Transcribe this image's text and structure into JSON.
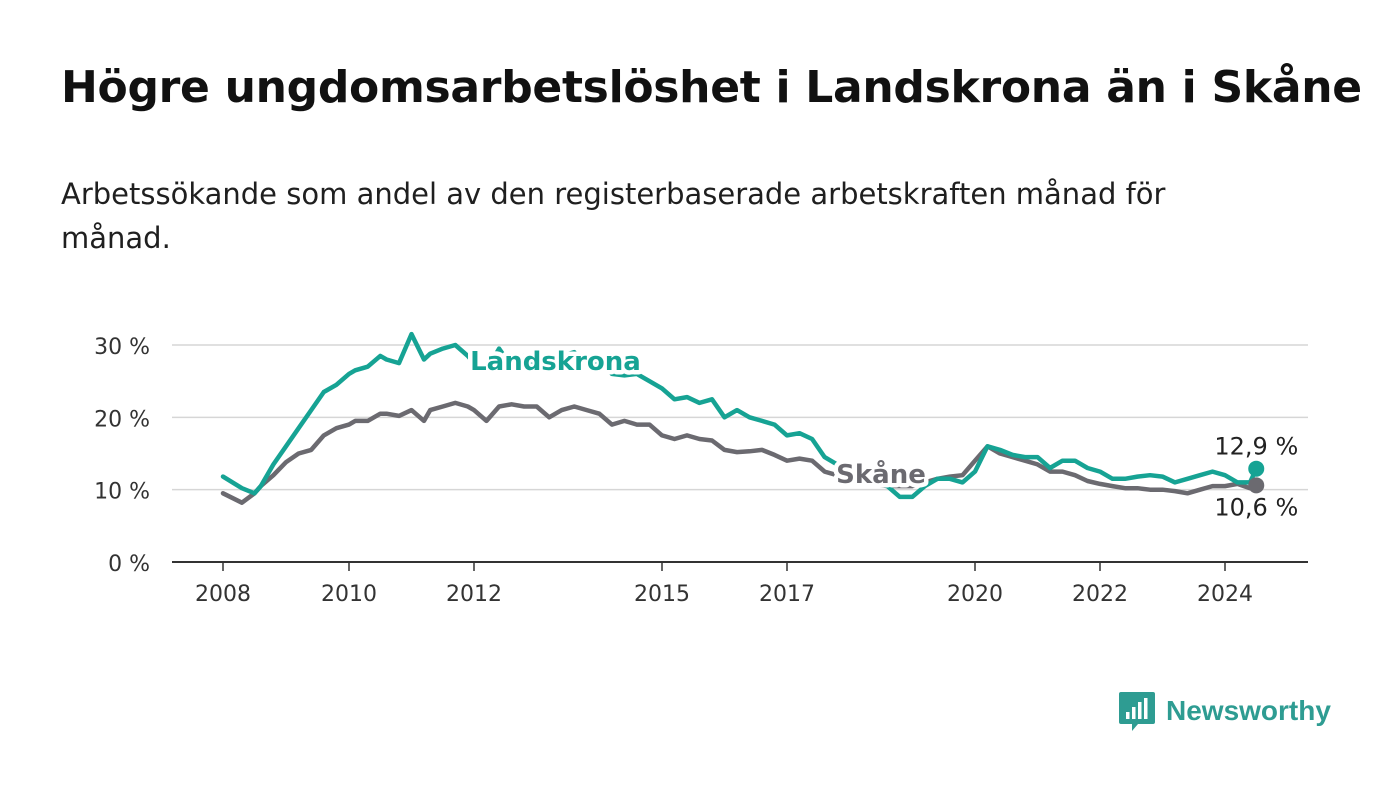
{
  "title": "Högre ungdomsarbetslöshet i Landskrona än i Skåne",
  "subtitle": "Arbetssökande som andel av den registerbaserade arbetskraften månad för månad.",
  "brand": "Newsworthy",
  "colors": {
    "landskrona": "#16a394",
    "skane": "#6b6a70",
    "grid": "#d6d6d6",
    "axis": "#333333"
  },
  "chart_data": {
    "type": "line",
    "title": "Högre ungdomsarbetslöshet i Landskrona än i Skåne",
    "subtitle": "Arbetssökande som andel av den registerbaserade arbetskraften månad för månad.",
    "xlabel": "",
    "ylabel": "",
    "ylim": [
      0,
      30
    ],
    "xlim": [
      2007.2,
      2025.6
    ],
    "y_ticks": [
      0,
      10,
      20,
      30
    ],
    "y_tick_labels": [
      "0 %",
      "10 %",
      "20 %",
      "30 %"
    ],
    "x_ticks": [
      2008,
      2010,
      2012,
      2015,
      2017,
      2020,
      2022,
      2024
    ],
    "x_tick_labels": [
      "2008",
      "2010",
      "2012",
      "2015",
      "2017",
      "2020",
      "2022",
      "2024"
    ],
    "grid": true,
    "legend": "inline labels",
    "series": [
      {
        "name": "Landskrona",
        "end_label": "12,9 %",
        "x": [
          2008.0,
          2008.3,
          2008.5,
          2008.6,
          2008.8,
          2009.0,
          2009.2,
          2009.4,
          2009.6,
          2009.8,
          2010.0,
          2010.1,
          2010.3,
          2010.5,
          2010.6,
          2010.8,
          2011.0,
          2011.2,
          2011.3,
          2011.5,
          2011.7,
          2011.9,
          2012.0,
          2012.2,
          2012.4,
          2012.6,
          2012.8,
          2013.0,
          2013.2,
          2013.4,
          2013.6,
          2013.8,
          2014.0,
          2014.2,
          2014.4,
          2014.6,
          2014.8,
          2015.0,
          2015.2,
          2015.4,
          2015.6,
          2015.8,
          2016.0,
          2016.2,
          2016.4,
          2016.6,
          2016.8,
          2017.0,
          2017.2,
          2017.4,
          2017.6,
          2017.8,
          2018.0,
          2018.2,
          2018.4,
          2018.6,
          2018.8,
          2019.0,
          2019.2,
          2019.4,
          2019.6,
          2019.8,
          2020.0,
          2020.2,
          2020.4,
          2020.6,
          2020.8,
          2021.0,
          2021.2,
          2021.4,
          2021.6,
          2021.8,
          2022.0,
          2022.2,
          2022.4,
          2022.6,
          2022.8,
          2023.0,
          2023.2,
          2023.4,
          2023.6,
          2023.8,
          2024.0,
          2024.2,
          2024.4,
          2024.5
        ],
        "values": [
          11.8,
          10.2,
          9.5,
          10.5,
          13.5,
          16.0,
          18.5,
          21.0,
          23.5,
          24.5,
          26.0,
          26.5,
          27.0,
          28.5,
          28.0,
          27.5,
          31.5,
          28.0,
          28.8,
          29.5,
          30.0,
          28.5,
          27.5,
          26.5,
          29.5,
          27.0,
          28.5,
          27.0,
          27.5,
          28.5,
          29.0,
          27.0,
          28.0,
          26.0,
          25.8,
          26.0,
          25.0,
          24.0,
          22.5,
          22.8,
          22.0,
          22.5,
          20.0,
          21.0,
          20.0,
          19.5,
          19.0,
          17.5,
          17.8,
          17.0,
          14.5,
          13.5,
          12.0,
          11.5,
          11.0,
          10.5,
          9.0,
          9.0,
          10.5,
          11.5,
          11.5,
          11.0,
          12.5,
          16.0,
          15.5,
          14.8,
          14.5,
          14.5,
          13.0,
          14.0,
          14.0,
          13.0,
          12.5,
          11.5,
          11.5,
          11.8,
          12.0,
          11.8,
          11.0,
          11.5,
          12.0,
          12.5,
          12.0,
          11.0,
          11.0,
          12.9
        ]
      },
      {
        "name": "Skåne",
        "end_label": "10,6 %",
        "x": [
          2008.0,
          2008.3,
          2008.5,
          2008.6,
          2008.8,
          2009.0,
          2009.2,
          2009.4,
          2009.6,
          2009.8,
          2010.0,
          2010.1,
          2010.3,
          2010.5,
          2010.6,
          2010.8,
          2011.0,
          2011.2,
          2011.3,
          2011.5,
          2011.7,
          2011.9,
          2012.0,
          2012.2,
          2012.4,
          2012.6,
          2012.8,
          2013.0,
          2013.2,
          2013.4,
          2013.6,
          2013.8,
          2014.0,
          2014.2,
          2014.4,
          2014.6,
          2014.8,
          2015.0,
          2015.2,
          2015.4,
          2015.6,
          2015.8,
          2016.0,
          2016.2,
          2016.4,
          2016.6,
          2016.8,
          2017.0,
          2017.2,
          2017.4,
          2017.6,
          2017.8,
          2018.0,
          2018.2,
          2018.4,
          2018.6,
          2018.8,
          2019.0,
          2019.2,
          2019.4,
          2019.6,
          2019.8,
          2020.0,
          2020.2,
          2020.4,
          2020.6,
          2020.8,
          2021.0,
          2021.2,
          2021.4,
          2021.6,
          2021.8,
          2022.0,
          2022.2,
          2022.4,
          2022.6,
          2022.8,
          2023.0,
          2023.2,
          2023.4,
          2023.6,
          2023.8,
          2024.0,
          2024.2,
          2024.4,
          2024.5
        ],
        "values": [
          9.5,
          8.2,
          9.5,
          10.5,
          12.0,
          13.8,
          15.0,
          15.5,
          17.5,
          18.5,
          19.0,
          19.5,
          19.5,
          20.5,
          20.5,
          20.2,
          21.0,
          19.5,
          21.0,
          21.5,
          22.0,
          21.5,
          21.0,
          19.5,
          21.5,
          21.8,
          21.5,
          21.5,
          20.0,
          21.0,
          21.5,
          21.0,
          20.5,
          19.0,
          19.5,
          19.0,
          19.0,
          17.5,
          17.0,
          17.5,
          17.0,
          16.8,
          15.5,
          15.2,
          15.3,
          15.5,
          14.8,
          14.0,
          14.3,
          14.0,
          12.5,
          12.0,
          11.5,
          11.0,
          10.8,
          10.5,
          10.5,
          10.5,
          11.0,
          11.5,
          11.8,
          12.0,
          14.0,
          16.0,
          15.0,
          14.5,
          14.0,
          13.5,
          12.5,
          12.5,
          12.0,
          11.2,
          10.8,
          10.5,
          10.2,
          10.2,
          10.0,
          10.0,
          9.8,
          9.5,
          10.0,
          10.5,
          10.5,
          10.8,
          10.2,
          10.6
        ]
      }
    ],
    "inline_labels": [
      {
        "series": "Landskrona",
        "text": "Landskrona",
        "x": 2013.3,
        "y": 27.8
      },
      {
        "series": "Skåne",
        "text": "Skåne",
        "x": 2018.5,
        "y": 12.2
      }
    ]
  }
}
